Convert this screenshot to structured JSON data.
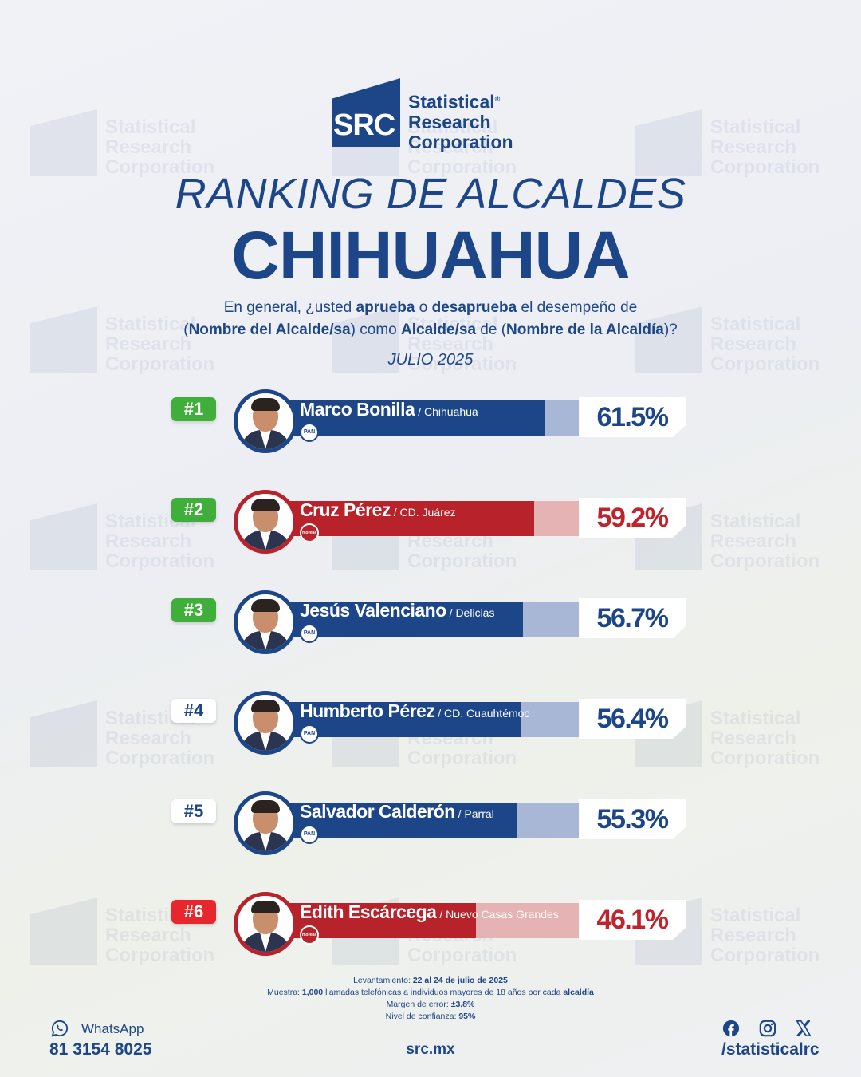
{
  "brand": {
    "mark": "SRC",
    "line1": "Statistical",
    "line2": "Research",
    "line3": "Corporation",
    "registered": "®"
  },
  "header": {
    "title_line1": "RANKING DE ALCALDES",
    "title_line2": "CHIHUAHUA"
  },
  "question": {
    "l1_a": "En general, ¿usted ",
    "l1_b": "aprueba",
    "l1_c": " o ",
    "l1_d": "desaprueba",
    "l1_e": " el desempeño de",
    "l2_a": "(",
    "l2_b": "Nombre del Alcalde/sa",
    "l2_c": ") como ",
    "l2_d": "Alcalde/sa",
    "l2_e": " de (",
    "l2_f": "Nombre de la Alcaldía",
    "l2_g": ")?"
  },
  "date": "JULIO 2025",
  "colors": {
    "blue": "#1d4688",
    "blue_light": "#a9b7d6",
    "red": "#b8222a",
    "red_light": "#e6b3b5",
    "green": "#3fae3b",
    "rank_red": "#e8262d"
  },
  "chart_data": {
    "type": "bar",
    "categories": [
      "Marco Bonilla",
      "Cruz Pérez",
      "Jesús Valenciano",
      "Humberto Pérez",
      "Salvador Calderón",
      "Edith Escárcega"
    ],
    "values": [
      61.5,
      59.2,
      56.7,
      56.4,
      55.3,
      46.1
    ],
    "unit": "%",
    "rows": [
      {
        "rank": "#1",
        "rank_style": "green",
        "name": "Marco Bonilla",
        "city": " / Chihuahua",
        "value": 61.5,
        "label": "61.5%",
        "party": "PAN",
        "color": "blue"
      },
      {
        "rank": "#2",
        "rank_style": "green",
        "name": "Cruz Pérez",
        "city": " / CD. Juárez",
        "value": 59.2,
        "label": "59.2%",
        "party": "morena",
        "color": "red"
      },
      {
        "rank": "#3",
        "rank_style": "green",
        "name": "Jesús Valenciano",
        "city": " / Delicias",
        "value": 56.7,
        "label": "56.7%",
        "party": "PAN",
        "color": "blue"
      },
      {
        "rank": "#4",
        "rank_style": "white",
        "name": "Humberto Pérez",
        "city": " / CD. Cuauhtémoc",
        "value": 56.4,
        "label": "56.4%",
        "party": "PAN",
        "color": "blue"
      },
      {
        "rank": "#5",
        "rank_style": "white",
        "name": "Salvador Calderón",
        "city": " / Parral",
        "value": 55.3,
        "label": "55.3%",
        "party": "PAN",
        "color": "blue"
      },
      {
        "rank": "#6",
        "rank_style": "red",
        "name": "Edith Escárcega",
        "city": " / Nuevo Casas Grandes",
        "value": 46.1,
        "label": "46.1%",
        "party": "morena",
        "color": "red"
      }
    ]
  },
  "methodology": {
    "l1_a": "Levantamiento: ",
    "l1_b": "22 al 24 de julio de 2025",
    "l2_a": "Muestra: ",
    "l2_b": "1,000",
    "l2_c": " llamadas telefónicas a individuos mayores de 18 años por cada ",
    "l2_d": "alcaldía",
    "l3_a": "Margen de error: ",
    "l3_b": "±3.8%",
    "l4_a": "Nivel de confianza: ",
    "l4_b": "95%"
  },
  "footer": {
    "whatsapp_label": "WhatsApp",
    "phone": "81 3154 8025",
    "site": "src.mx",
    "handle": "/statisticalrc",
    "icons": [
      "whatsapp-icon",
      "facebook-icon",
      "instagram-icon",
      "x-icon"
    ]
  }
}
